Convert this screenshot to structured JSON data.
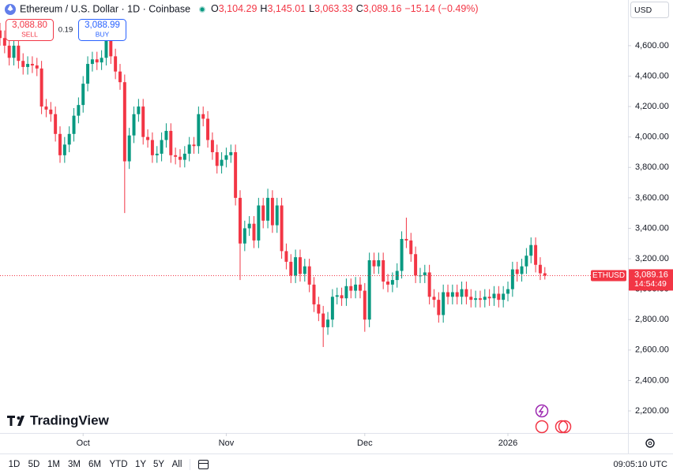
{
  "header": {
    "title": "Ethereum / U.S. Dollar · 1D · Coinbase",
    "open_label": "O",
    "open": "3,104.29",
    "high_label": "H",
    "high": "3,145.01",
    "low_label": "L",
    "low": "3,063.33",
    "close_label": "C",
    "close": "3,089.16",
    "change": "−15.14 (−0.49%)"
  },
  "trade": {
    "sell_price": "3,088.80",
    "sell_label": "SELL",
    "spread": "0.19",
    "buy_price": "3,088.99",
    "buy_label": "BUY"
  },
  "currency": "USD",
  "brand": "TradingView",
  "chart_data": {
    "type": "candlestick",
    "series": [
      {
        "name": "ETHUSD",
        "up_color": "#089981",
        "down_color": "#f23645",
        "open": [
          4700,
          4650,
          4600,
          4520,
          4600,
          4500,
          4460,
          4480,
          4470,
          4450,
          4200,
          4180,
          4150,
          4020,
          3880,
          3950,
          4020,
          4140,
          4210,
          4350,
          4480,
          4510,
          4490,
          4520,
          4690,
          4530,
          4430,
          4360,
          3840,
          4010,
          4150,
          4200,
          4000,
          3980,
          3880,
          3890,
          3980,
          4040,
          3880,
          3870,
          3850,
          3890,
          3950,
          3940,
          4150,
          4120,
          3980,
          3900,
          3810,
          3850,
          3880,
          3900,
          3600,
          3300,
          3400,
          3430,
          3320,
          3550,
          3450,
          3600,
          3420,
          3550,
          3250,
          3180,
          3090,
          3210,
          3100,
          3150,
          3030,
          2900,
          2840,
          2750,
          2800,
          2950,
          2960,
          2940,
          3020,
          2990,
          3030,
          2990,
          2800,
          3190,
          3150,
          3190,
          3050,
          3030,
          3060,
          3120,
          3330,
          3320,
          3230,
          3090,
          3090,
          3110,
          2950,
          2930,
          2830,
          2980,
          2950,
          2980,
          2950,
          3000,
          2950,
          2930,
          2940,
          2930,
          2950,
          2940,
          2970,
          2930,
          2970,
          3000,
          3130,
          3100,
          3150,
          3220,
          3290,
          3160,
          3104.29
        ],
        "high": [
          4750,
          4700,
          4650,
          4650,
          4650,
          4550,
          4530,
          4530,
          4520,
          4500,
          4250,
          4230,
          4200,
          4070,
          4000,
          4070,
          4190,
          4260,
          4400,
          4530,
          4560,
          4560,
          4570,
          4760,
          4740,
          4580,
          4480,
          4410,
          4060,
          4200,
          4250,
          4250,
          4050,
          4030,
          3940,
          4030,
          4090,
          4090,
          3930,
          3920,
          3940,
          4000,
          4000,
          4200,
          4200,
          4170,
          4030,
          3950,
          3900,
          3930,
          3950,
          3950,
          3650,
          3450,
          3480,
          3480,
          3600,
          3600,
          3660,
          3650,
          3600,
          3600,
          3300,
          3230,
          3260,
          3260,
          3200,
          3200,
          3080,
          2950,
          2890,
          2850,
          3000,
          3010,
          3010,
          3070,
          3070,
          3080,
          3080,
          3040,
          3240,
          3240,
          3240,
          3240,
          3100,
          3110,
          3170,
          3380,
          3470,
          3370,
          3280,
          3140,
          3160,
          3160,
          3000,
          2980,
          3030,
          3030,
          3030,
          3030,
          3050,
          3050,
          3000,
          2990,
          2990,
          3000,
          3000,
          3020,
          3020,
          3020,
          3050,
          3180,
          3180,
          3200,
          3270,
          3340,
          3340,
          3210,
          3145.01
        ],
        "low": [
          4600,
          4550,
          4470,
          4470,
          4450,
          4410,
          4410,
          4420,
          4400,
          4150,
          4130,
          4100,
          3970,
          3830,
          3830,
          3900,
          3970,
          4090,
          4160,
          4300,
          4430,
          4440,
          4440,
          4470,
          4480,
          4380,
          4310,
          3500,
          3790,
          3960,
          4100,
          3950,
          3930,
          3830,
          3830,
          3840,
          3930,
          3830,
          3820,
          3800,
          3800,
          3840,
          3890,
          3890,
          4070,
          3930,
          3850,
          3760,
          3760,
          3800,
          3830,
          3550,
          3060,
          3250,
          3350,
          3270,
          3270,
          3400,
          3400,
          3370,
          3370,
          3200,
          3130,
          3040,
          3040,
          3050,
          3050,
          2980,
          2850,
          2790,
          2620,
          2700,
          2750,
          2900,
          2890,
          2890,
          2940,
          2940,
          2940,
          2720,
          2750,
          3100,
          3100,
          3000,
          2980,
          2980,
          3010,
          3070,
          3270,
          3180,
          3040,
          3040,
          3040,
          2900,
          2880,
          2780,
          2780,
          2900,
          2900,
          2900,
          2900,
          2900,
          2880,
          2880,
          2880,
          2880,
          2890,
          2890,
          2880,
          2880,
          2920,
          2950,
          3050,
          3050,
          3100,
          3170,
          3110,
          3060,
          3063.33
        ],
        "close": [
          4650,
          4600,
          4520,
          4600,
          4500,
          4460,
          4480,
          4470,
          4450,
          4200,
          4180,
          4150,
          4020,
          3880,
          3950,
          4020,
          4140,
          4210,
          4350,
          4480,
          4510,
          4490,
          4520,
          4690,
          4530,
          4430,
          4360,
          3840,
          4010,
          4150,
          4200,
          4000,
          3980,
          3880,
          3890,
          3980,
          4040,
          3880,
          3870,
          3850,
          3890,
          3950,
          3940,
          4150,
          4120,
          3980,
          3900,
          3810,
          3850,
          3880,
          3900,
          3600,
          3300,
          3400,
          3430,
          3320,
          3550,
          3450,
          3600,
          3420,
          3550,
          3250,
          3180,
          3090,
          3210,
          3100,
          3150,
          3030,
          2900,
          2840,
          2750,
          2800,
          2950,
          2960,
          2940,
          3020,
          2990,
          3030,
          2990,
          2800,
          3190,
          3150,
          3190,
          3050,
          3030,
          3060,
          3120,
          3330,
          3320,
          3230,
          3090,
          3090,
          3110,
          2950,
          2930,
          2830,
          2980,
          2950,
          2980,
          2950,
          3000,
          2950,
          2930,
          2940,
          2930,
          2950,
          2940,
          2970,
          2930,
          2970,
          3000,
          3130,
          3100,
          3150,
          3220,
          3290,
          3160,
          3104.29,
          3089.16
        ]
      }
    ],
    "xlim": [
      0,
      136
    ],
    "xticks": [
      {
        "value": 18,
        "label": "Oct"
      },
      {
        "value": 49,
        "label": "Nov"
      },
      {
        "value": 79,
        "label": "Dec"
      },
      {
        "value": 110,
        "label": "2026"
      }
    ],
    "ylim": [
      2055,
      4900
    ],
    "yticks": [
      {
        "value": 2200,
        "label": "2,200.00"
      },
      {
        "value": 2400,
        "label": "2,400.00"
      },
      {
        "value": 2600,
        "label": "2,600.00"
      },
      {
        "value": 2800,
        "label": "2,800.00"
      },
      {
        "value": 3000,
        "label": "3,000.00"
      },
      {
        "value": 3200,
        "label": "3,200.00"
      },
      {
        "value": 3400,
        "label": "3,400.00"
      },
      {
        "value": 3600,
        "label": "3,600.00"
      },
      {
        "value": 3800,
        "label": "3,800.00"
      },
      {
        "value": 4000,
        "label": "4,000.00"
      },
      {
        "value": 4200,
        "label": "4,200.00"
      },
      {
        "value": 4400,
        "label": "4,400.00"
      },
      {
        "value": 4600,
        "label": "4,600.00"
      }
    ],
    "grid": false,
    "last_price_label": "3,089.16",
    "countdown": "14:54:49"
  },
  "footer": {
    "periods": [
      "1D",
      "5D",
      "1M",
      "3M",
      "6M",
      "YTD",
      "1Y",
      "5Y",
      "All"
    ],
    "time": "09:05:10 UTC"
  }
}
